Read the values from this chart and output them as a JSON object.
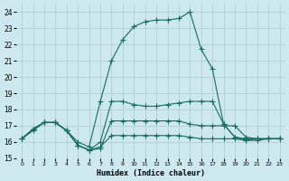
{
  "xlabel": "Humidex (Indice chaleur)",
  "xlim": [
    -0.5,
    23.5
  ],
  "ylim": [
    15,
    24.5
  ],
  "yticks": [
    15,
    16,
    17,
    18,
    19,
    20,
    21,
    22,
    23,
    24
  ],
  "xticks": [
    0,
    1,
    2,
    3,
    4,
    5,
    6,
    7,
    8,
    9,
    10,
    11,
    12,
    13,
    14,
    15,
    16,
    17,
    18,
    19,
    20,
    21,
    22,
    23
  ],
  "background_color": "#cde8ee",
  "grid_color": "#aaccd4",
  "line_color": "#1a6b62",
  "lines": [
    {
      "x": [
        0,
        1,
        2,
        3,
        4,
        5,
        6,
        7,
        8,
        9,
        10,
        11,
        12,
        13,
        14,
        15,
        16,
        17,
        18,
        19,
        20,
        21,
        22,
        23
      ],
      "y": [
        16.2,
        16.8,
        17.2,
        17.2,
        16.7,
        16.0,
        15.7,
        18.5,
        21.0,
        22.3,
        23.1,
        23.4,
        23.5,
        23.5,
        23.6,
        24.0,
        21.7,
        20.5,
        17.1,
        16.3,
        16.1,
        16.2,
        16.2,
        16.2
      ],
      "marker": "+",
      "markersize": 4
    },
    {
      "x": [
        0,
        1,
        2,
        3,
        4,
        5,
        6,
        7,
        8,
        9,
        10,
        11,
        12,
        13,
        14,
        15,
        16,
        17,
        18,
        19,
        20,
        21,
        22,
        23
      ],
      "y": [
        16.2,
        16.8,
        17.2,
        17.2,
        16.7,
        15.8,
        15.5,
        16.0,
        18.5,
        18.5,
        18.3,
        18.2,
        18.2,
        18.3,
        18.4,
        18.5,
        18.5,
        18.5,
        17.1,
        16.3,
        16.2,
        16.2,
        16.2,
        16.2
      ],
      "marker": "+",
      "markersize": 4
    },
    {
      "x": [
        0,
        1,
        2,
        3,
        4,
        5,
        6,
        7,
        8,
        9,
        10,
        11,
        12,
        13,
        14,
        15,
        16,
        17,
        18,
        19,
        20,
        21,
        22,
        23
      ],
      "y": [
        16.2,
        16.8,
        17.2,
        17.2,
        16.7,
        15.8,
        15.5,
        15.6,
        17.3,
        17.3,
        17.3,
        17.3,
        17.3,
        17.3,
        17.3,
        17.1,
        17.0,
        17.0,
        17.0,
        17.0,
        16.3,
        16.2,
        16.2,
        16.2
      ],
      "marker": "+",
      "markersize": 4
    },
    {
      "x": [
        0,
        1,
        2,
        3,
        4,
        5,
        6,
        7,
        8,
        9,
        10,
        11,
        12,
        13,
        14,
        15,
        16,
        17,
        18,
        19,
        20,
        21,
        22,
        23
      ],
      "y": [
        16.2,
        16.7,
        17.2,
        17.2,
        16.7,
        15.8,
        15.5,
        15.7,
        16.4,
        16.4,
        16.4,
        16.4,
        16.4,
        16.4,
        16.4,
        16.3,
        16.2,
        16.2,
        16.2,
        16.2,
        16.1,
        16.1,
        16.2,
        16.2
      ],
      "marker": "+",
      "markersize": 4
    }
  ]
}
